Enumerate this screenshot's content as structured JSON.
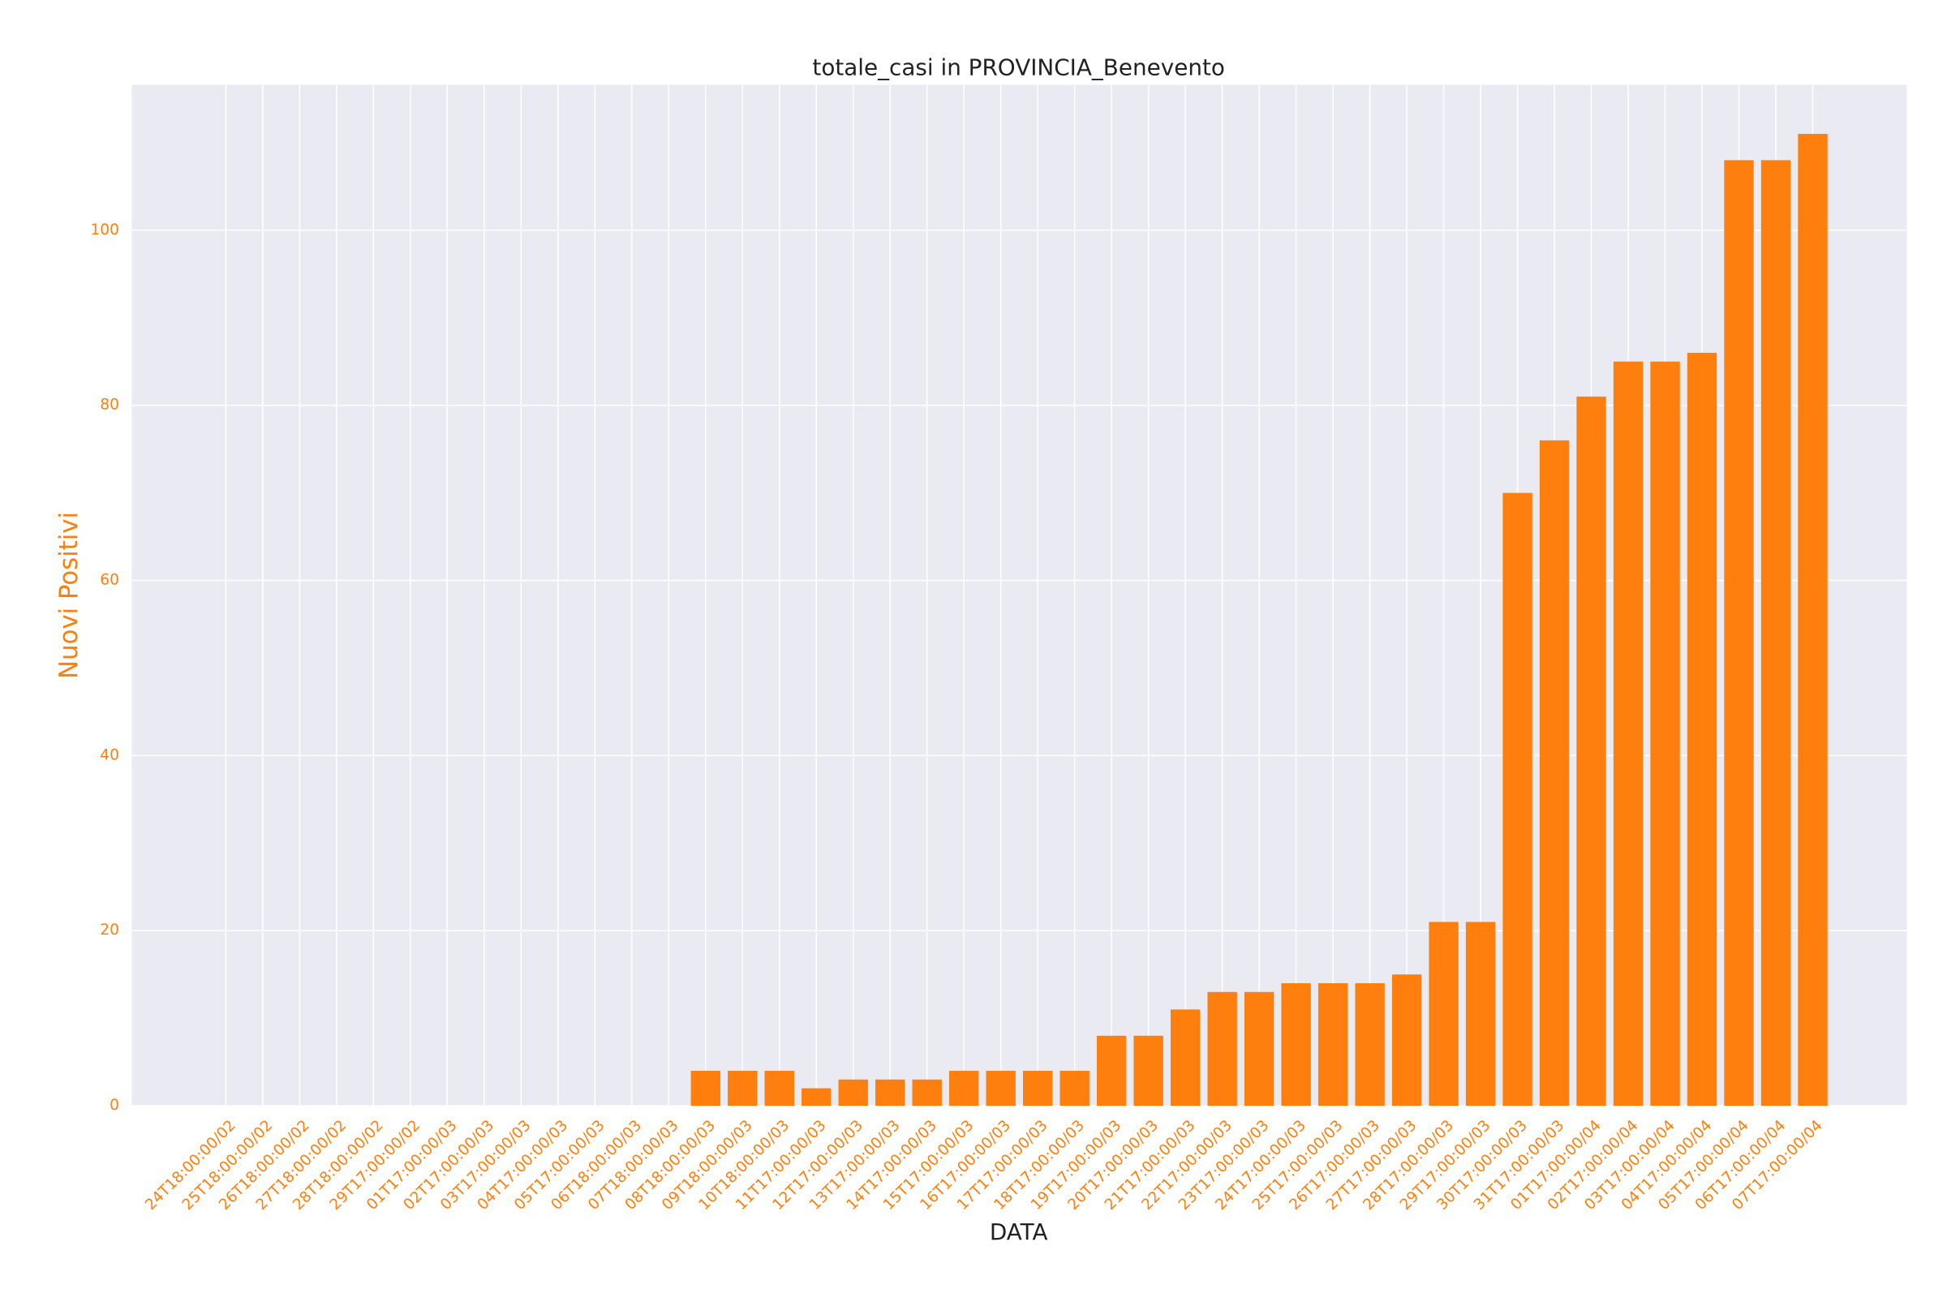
{
  "chart_data": {
    "type": "bar",
    "title": "totale_casi in PROVINCIA_Benevento",
    "x_label": "DATA",
    "y_label": "Nuovi Positivi",
    "categories": [
      "24T18:00:00/02",
      "25T18:00:00/02",
      "26T18:00:00/02",
      "27T18:00:00/02",
      "28T18:00:00/02",
      "29T17:00:00/02",
      "01T17:00:00/03",
      "02T17:00:00/03",
      "03T17:00:00/03",
      "04T17:00:00/03",
      "05T17:00:00/03",
      "06T18:00:00/03",
      "07T18:00:00/03",
      "08T18:00:00/03",
      "09T18:00:00/03",
      "10T18:00:00/03",
      "11T17:00:00/03",
      "12T17:00:00/03",
      "13T17:00:00/03",
      "14T17:00:00/03",
      "15T17:00:00/03",
      "16T17:00:00/03",
      "17T17:00:00/03",
      "18T17:00:00/03",
      "19T17:00:00/03",
      "20T17:00:00/03",
      "21T17:00:00/03",
      "22T17:00:00/03",
      "23T17:00:00/03",
      "24T17:00:00/03",
      "25T17:00:00/03",
      "26T17:00:00/03",
      "27T17:00:00/03",
      "28T17:00:00/03",
      "29T17:00:00/03",
      "30T17:00:00/03",
      "31T17:00:00/03",
      "01T17:00:00/04",
      "02T17:00:00/04",
      "03T17:00:00/04",
      "04T17:00:00/04",
      "05T17:00:00/04",
      "06T17:00:00/04",
      "07T17:00:00/04"
    ],
    "values": [
      0,
      0,
      0,
      0,
      0,
      0,
      0,
      0,
      0,
      0,
      0,
      0,
      0,
      4,
      4,
      4,
      2,
      3,
      3,
      3,
      4,
      4,
      4,
      4,
      8,
      8,
      11,
      13,
      13,
      14,
      14,
      14,
      15,
      21,
      21,
      70,
      76,
      81,
      85,
      85,
      86,
      108,
      108,
      111
    ],
    "color": "#ff7f0e",
    "ylim": [
      0,
      116.6
    ],
    "yticks": [
      0,
      20,
      40,
      60,
      80,
      100
    ],
    "grid": true
  }
}
